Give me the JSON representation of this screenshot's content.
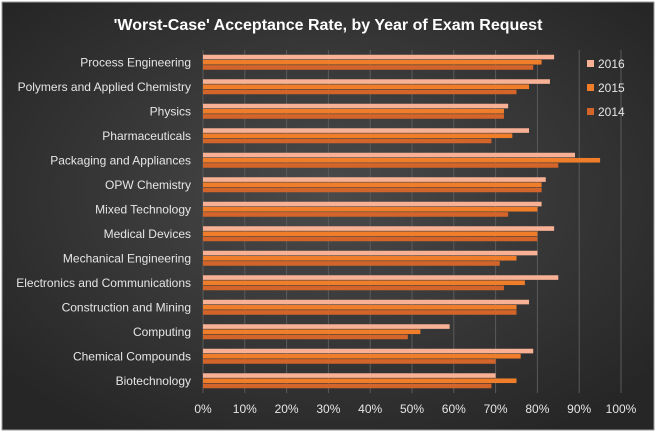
{
  "chart_data": {
    "type": "bar",
    "orientation": "horizontal",
    "title": "'Worst-Case' Acceptance Rate, by Year of Exam Request",
    "xlabel": "",
    "ylabel": "",
    "xlim": [
      0,
      1.0
    ],
    "x_ticks": [
      {
        "value": 0.0,
        "label": "0%"
      },
      {
        "value": 0.1,
        "label": "10%"
      },
      {
        "value": 0.2,
        "label": "20%"
      },
      {
        "value": 0.3,
        "label": "30%"
      },
      {
        "value": 0.4,
        "label": "40%"
      },
      {
        "value": 0.5,
        "label": "50%"
      },
      {
        "value": 0.6,
        "label": "60%"
      },
      {
        "value": 0.7,
        "label": "70%"
      },
      {
        "value": 0.8,
        "label": "80%"
      },
      {
        "value": 0.9,
        "label": "90%"
      },
      {
        "value": 1.0,
        "label": "100%"
      }
    ],
    "grid": true,
    "legend_position": "right",
    "categories": [
      "Process Engineering",
      "Polymers and Applied Chemistry",
      "Physics",
      "Pharmaceuticals",
      "Packaging and Appliances",
      "OPW Chemistry",
      "Mixed Technology",
      "Medical Devices",
      "Mechanical Engineering",
      "Electronics and Communications",
      "Construction and Mining",
      "Computing",
      "Chemical Compounds",
      "Biotechnology"
    ],
    "series": [
      {
        "name": "2016",
        "color": "#f8b195",
        "values": [
          0.84,
          0.83,
          0.73,
          0.78,
          0.89,
          0.82,
          0.81,
          0.84,
          0.8,
          0.85,
          0.78,
          0.59,
          0.79,
          0.7
        ]
      },
      {
        "name": "2015",
        "color": "#f07d2a",
        "values": [
          0.81,
          0.78,
          0.72,
          0.74,
          0.95,
          0.81,
          0.8,
          0.8,
          0.75,
          0.77,
          0.75,
          0.52,
          0.76,
          0.75
        ]
      },
      {
        "name": "2014",
        "color": "#d4652a",
        "values": [
          0.79,
          0.75,
          0.72,
          0.69,
          0.85,
          0.81,
          0.73,
          0.8,
          0.71,
          0.72,
          0.75,
          0.49,
          0.7,
          0.69
        ]
      }
    ]
  },
  "colors": {
    "background": "#3a3a3a",
    "gridline": "#5a5a5a",
    "text": "#e6e6e6"
  }
}
